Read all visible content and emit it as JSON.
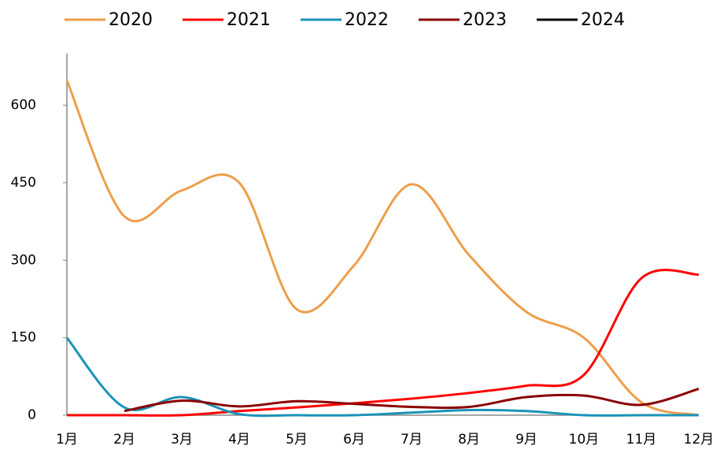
{
  "chart_data": {
    "type": "line",
    "categories": [
      "1月",
      "2月",
      "3月",
      "4月",
      "5月",
      "6月",
      "7月",
      "8月",
      "9月",
      "10月",
      "11月",
      "12月"
    ],
    "series": [
      {
        "name": "2020",
        "color": "#ED9E4A",
        "values": [
          648,
          385,
          435,
          450,
          205,
          290,
          447,
          310,
          200,
          150,
          25,
          0
        ]
      },
      {
        "name": "2021",
        "color": "#FF0000",
        "values": [
          0,
          0,
          0,
          8,
          15,
          23,
          32,
          43,
          57,
          78,
          265,
          272
        ]
      },
      {
        "name": "2022",
        "color": "#1A93B9",
        "values": [
          150,
          15,
          35,
          2,
          0,
          0,
          5,
          10,
          8,
          0,
          0,
          0
        ]
      },
      {
        "name": "2023",
        "color": "#8B0000",
        "values": [
          null,
          8,
          28,
          17,
          27,
          22,
          16,
          16,
          35,
          38,
          20,
          51
        ]
      },
      {
        "name": "2024",
        "color": "#000000",
        "values": [
          null,
          null,
          null,
          null,
          null,
          null,
          null,
          null,
          null,
          null,
          null,
          null
        ]
      }
    ],
    "ylim": [
      0,
      700
    ],
    "yticks": [
      0,
      150,
      300,
      450,
      600
    ],
    "legend": "top"
  }
}
